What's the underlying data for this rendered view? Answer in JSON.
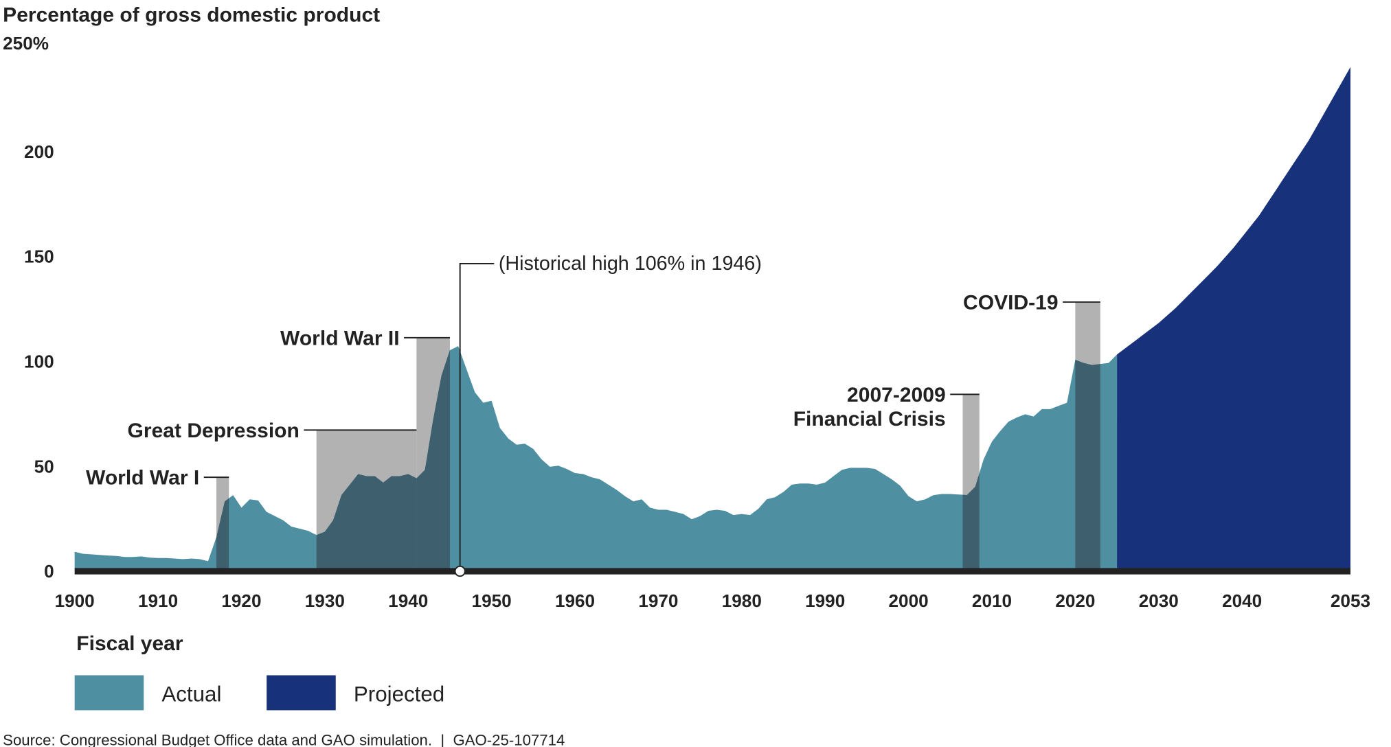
{
  "chart_data": {
    "type": "area",
    "title": "",
    "ylabel": "Percentage of gross domestic product",
    "xlabel": "Fiscal year",
    "ylim": [
      0,
      250
    ],
    "xlim": [
      1900,
      2053
    ],
    "yticks": [
      "250%",
      "200",
      "150",
      "100",
      "50",
      "0"
    ],
    "ytick_values": [
      250,
      200,
      150,
      100,
      50,
      0
    ],
    "xticks": [
      "1900",
      "1910",
      "1920",
      "1930",
      "1940",
      "1950",
      "1960",
      "1970",
      "1980",
      "1990",
      "2000",
      "2010",
      "2020",
      "2030",
      "2040",
      "2053"
    ],
    "xtick_values": [
      1900,
      1910,
      1920,
      1930,
      1940,
      1950,
      1960,
      1970,
      1980,
      1990,
      2000,
      2010,
      2020,
      2030,
      2040,
      2053
    ],
    "grid": false,
    "legend_placement": "bottom-left",
    "series": [
      {
        "name": "Actual",
        "color": "#4f8fa2",
        "x": [
          1900,
          1901,
          1902,
          1903,
          1904,
          1905,
          1906,
          1907,
          1908,
          1909,
          1910,
          1911,
          1912,
          1913,
          1914,
          1915,
          1916,
          1917,
          1918,
          1919,
          1920,
          1921,
          1922,
          1923,
          1924,
          1925,
          1926,
          1927,
          1928,
          1929,
          1930,
          1931,
          1932,
          1933,
          1934,
          1935,
          1936,
          1937,
          1938,
          1939,
          1940,
          1941,
          1942,
          1943,
          1944,
          1945,
          1946,
          1947,
          1948,
          1949,
          1950,
          1951,
          1952,
          1953,
          1954,
          1955,
          1956,
          1957,
          1958,
          1959,
          1960,
          1961,
          1962,
          1963,
          1964,
          1965,
          1966,
          1967,
          1968,
          1969,
          1970,
          1971,
          1972,
          1973,
          1974,
          1975,
          1976,
          1977,
          1978,
          1979,
          1980,
          1981,
          1982,
          1983,
          1984,
          1985,
          1986,
          1987,
          1988,
          1989,
          1990,
          1991,
          1992,
          1993,
          1994,
          1995,
          1996,
          1997,
          1998,
          1999,
          2000,
          2001,
          2002,
          2003,
          2004,
          2005,
          2006,
          2007,
          2008,
          2009,
          2010,
          2011,
          2012,
          2013,
          2014,
          2015,
          2016,
          2017,
          2018,
          2019,
          2020,
          2021,
          2022,
          2023,
          2024,
          2025
        ],
        "values": [
          8,
          7,
          6.8,
          6.5,
          6.2,
          6,
          5.5,
          5.5,
          5.8,
          5.2,
          5,
          5,
          4.8,
          4.5,
          4.8,
          4.5,
          3.5,
          15,
          32,
          35,
          29,
          33,
          32.5,
          27,
          25,
          23,
          20,
          19,
          18,
          16,
          17.5,
          23,
          35,
          40,
          45,
          44,
          44,
          41,
          44,
          44,
          45,
          43,
          47,
          71,
          92,
          104,
          106,
          95,
          84,
          79,
          80,
          67,
          62,
          59,
          59.5,
          57,
          52,
          48.5,
          49,
          47.5,
          45.5,
          45,
          43.5,
          42.5,
          40,
          37.5,
          34.5,
          32,
          33,
          29,
          28,
          28,
          27,
          26,
          23.5,
          25,
          27.5,
          28,
          27.5,
          25.5,
          26,
          25.5,
          28.5,
          33,
          34,
          36.5,
          40,
          40.5,
          40.5,
          40,
          41,
          44,
          47,
          48,
          48,
          48,
          47.5,
          45,
          42.5,
          39.5,
          34.5,
          32,
          33,
          35,
          35.5,
          35.5,
          35.3,
          35,
          39,
          52,
          60.5,
          65.5,
          70,
          72,
          73.5,
          72.5,
          76,
          76,
          77.5,
          79,
          99.5,
          98,
          97,
          97.5,
          98,
          102
        ]
      },
      {
        "name": "Projected",
        "color": "#17317a",
        "x": [
          2025,
          2026,
          2027,
          2028,
          2029,
          2030,
          2031,
          2032,
          2033,
          2034,
          2035,
          2036,
          2037,
          2038,
          2039,
          2040,
          2041,
          2042,
          2043,
          2044,
          2045,
          2046,
          2047,
          2048,
          2049,
          2050,
          2051,
          2052,
          2053
        ],
        "values": [
          102,
          105,
          108,
          111,
          114,
          117,
          120.5,
          124,
          128,
          132,
          136,
          140,
          144,
          148.5,
          153,
          158,
          163,
          168,
          174,
          180,
          186,
          192,
          198,
          204,
          211,
          218,
          225,
          232,
          239
        ]
      }
    ],
    "shaded_periods": [
      {
        "label": "World War I",
        "start": 1917,
        "end": 1918.5,
        "label_level": 43.5
      },
      {
        "label": "Great Depression",
        "start": 1929,
        "end": 1941,
        "label_level": 66
      },
      {
        "label": "World War II",
        "start": 1941,
        "end": 1945,
        "label_level": 110
      },
      {
        "label": "2007-2009",
        "label2": "Financial Crisis",
        "start": 2006.5,
        "end": 2008.5,
        "label_level": 83
      },
      {
        "label": "COVID-19",
        "start": 2020,
        "end": 2023,
        "label_level": 127
      }
    ],
    "annotations": [
      {
        "text": "(Historical high 106% in 1946)",
        "x": 1946,
        "y": 106
      }
    ],
    "colors": {
      "period_shade": "#b2b2b2",
      "period_overlay": "#3e5f6d",
      "baseline": "#222222"
    }
  },
  "source": "Source: Congressional Budget Office data and GAO simulation.  |  GAO-25-107714"
}
